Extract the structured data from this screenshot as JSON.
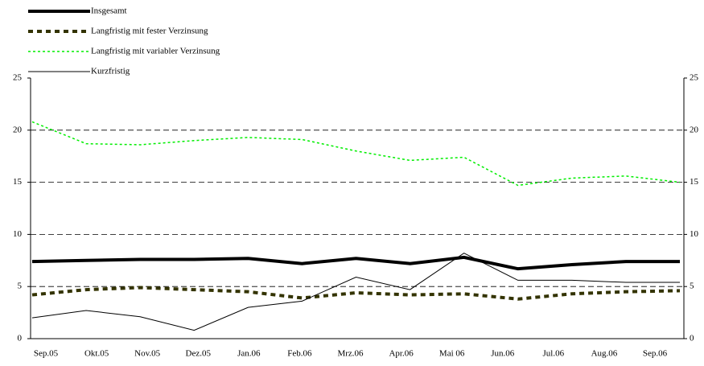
{
  "chart_data": {
    "type": "line",
    "categories": [
      "Sep.05",
      "Okt.05",
      "Nov.05",
      "Dez.05",
      "Jan.06",
      "Feb.06",
      "Mrz.06",
      "Apr.06",
      "Mai 06",
      "Jun.06",
      "Jul.06",
      "Aug.06",
      "Sep.06"
    ],
    "series": [
      {
        "name": "Insgesamt",
        "color": "#000000",
        "style": "solid",
        "width": 4,
        "values": [
          7.4,
          7.5,
          7.6,
          7.6,
          7.7,
          7.2,
          7.7,
          7.2,
          7.8,
          6.7,
          7.1,
          7.4,
          7.4
        ]
      },
      {
        "name": "Langfristig mit fester Verzinsung",
        "color": "#333300",
        "style": "dash",
        "width": 4,
        "values": [
          4.2,
          4.7,
          4.9,
          4.7,
          4.5,
          3.9,
          4.4,
          4.2,
          4.3,
          3.8,
          4.3,
          4.5,
          4.6
        ]
      },
      {
        "name": "Langfristig mit variabler Verzinsung",
        "color": "#00ee00",
        "style": "dot",
        "width": 1.5,
        "values": [
          20.8,
          18.7,
          18.6,
          19.0,
          19.3,
          19.1,
          18.0,
          17.1,
          17.4,
          14.7,
          15.4,
          15.6,
          15.0
        ]
      },
      {
        "name": "Kurzfristig",
        "color": "#000000",
        "style": "solid",
        "width": 1,
        "values": [
          2.0,
          2.7,
          2.1,
          0.8,
          3.0,
          3.6,
          5.9,
          4.7,
          8.2,
          5.6,
          5.6,
          5.4,
          5.4
        ]
      }
    ],
    "ylim": [
      0,
      25
    ],
    "yticks": [
      0,
      5,
      10,
      15,
      20,
      25
    ],
    "y2lim": [
      0,
      25
    ],
    "y2ticks": [
      0,
      5,
      10,
      15,
      20,
      25
    ],
    "grid": true,
    "legend": "top-left"
  }
}
